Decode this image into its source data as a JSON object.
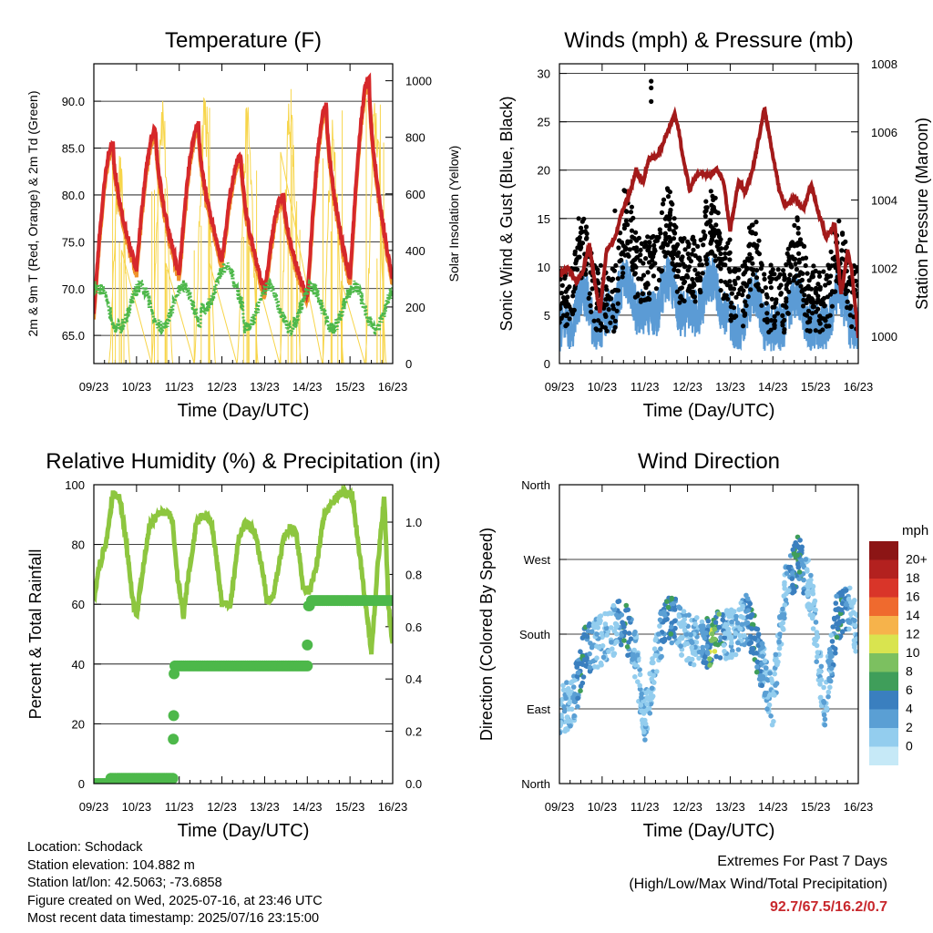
{
  "footer": {
    "location": "Location: Schodack",
    "elevation": "Station elevation: 104.882 m",
    "latlon": "Station lat/lon: 42.5063; -73.6858",
    "created": "Figure created on Wed, 2025-07-16, at 23:46 UTC",
    "recent": "Most recent data timestamp: 2025/07/16 23:15:00"
  },
  "extremes": {
    "title": "Extremes For Past 7 Days",
    "subtitle": "(High/Low/Max Wind/Total Precipitation)",
    "values": "92.7/67.5/16.2/0.7",
    "color": "#c8282d"
  },
  "chart_data": [
    {
      "type": "line",
      "title": "Temperature (F)",
      "xlabel": "Time (Day/UTC)",
      "ylabel": "2m & 9m T (Red, Orange) & 2m Td (Green)",
      "y2label": "Solar Insolation (Yellow)",
      "xticks": [
        "09/23",
        "10/23",
        "11/23",
        "12/23",
        "13/23",
        "14/23",
        "15/23",
        "16/23"
      ],
      "xlim": [
        0,
        7
      ],
      "ylim": [
        62,
        94
      ],
      "yticks": [
        "65.0",
        "70.0",
        "75.0",
        "80.0",
        "85.0",
        "90.0"
      ],
      "y2lim": [
        0,
        1060
      ],
      "y2ticks": [
        "0",
        "200",
        "400",
        "600",
        "800",
        "1000"
      ],
      "grid": true,
      "colors": {
        "t2m": "#d6282b",
        "t9m": "#f0922c",
        "td": "#4db84a",
        "solar": "#f7d54a"
      },
      "daily_high": [
        85.5,
        87.0,
        87.5,
        84.0,
        80.0,
        89.5,
        92.5
      ],
      "daily_low": [
        67.5,
        72.0,
        71.5,
        73.0,
        69.5,
        69.0,
        71.0
      ],
      "dewpoint_range": [
        64.0,
        73.5
      ],
      "solar_daily_peak": [
        760,
        1000,
        1010,
        940,
        1000,
        900,
        970
      ]
    },
    {
      "type": "scatter",
      "title": "Winds (mph) & Pressure (mb)",
      "xlabel": "Time (Day/UTC)",
      "ylabel": "Sonic Wind & Gust (Blue, Black)",
      "y2label": "Station Pressure (Maroon)",
      "xticks": [
        "09/23",
        "10/23",
        "11/23",
        "12/23",
        "13/23",
        "14/23",
        "15/23",
        "16/23"
      ],
      "xlim": [
        0,
        7
      ],
      "ylim": [
        0,
        31
      ],
      "yticks": [
        "0",
        "5",
        "10",
        "15",
        "20",
        "25",
        "30"
      ],
      "y2lim": [
        999.2,
        1008
      ],
      "y2ticks": [
        "1000",
        "1002",
        "1004",
        "1006",
        "1008"
      ],
      "grid": true,
      "colors": {
        "wind": "#5b9bd5",
        "gust": "#000000",
        "pressure": "#a31a1a"
      },
      "pressure_series": {
        "x": [
          0,
          0.2,
          0.4,
          0.55,
          0.7,
          0.85,
          0.95,
          1.1,
          1.3,
          1.5,
          1.65,
          1.8,
          1.95,
          2.1,
          2.3,
          2.5,
          2.7,
          2.8,
          2.9,
          3.05,
          3.25,
          3.5,
          3.7,
          3.85,
          4.0,
          4.2,
          4.35,
          4.55,
          4.8,
          5.0,
          5.15,
          5.3,
          5.5,
          5.7,
          5.9,
          6.05,
          6.25,
          6.45,
          6.6,
          6.75,
          6.85,
          7.0
        ],
        "y": [
          1001.8,
          1002.0,
          1001.6,
          1001.9,
          1002.7,
          1001.4,
          1000.7,
          1002.5,
          1002.9,
          1003.8,
          1004.2,
          1004.9,
          1004.5,
          1005.2,
          1005.3,
          1005.9,
          1006.5,
          1006.0,
          1005.2,
          1004.3,
          1004.8,
          1004.7,
          1004.9,
          1004.5,
          1003.1,
          1004.6,
          1004.2,
          1005.0,
          1006.7,
          1005.3,
          1004.3,
          1003.8,
          1004.1,
          1003.7,
          1004.4,
          1003.7,
          1002.9,
          1003.3,
          1001.2,
          1002.5,
          1001.9,
          1000.0
        ]
      },
      "wind_range": [
        0.5,
        15.0
      ],
      "gust_max": 29.2
    },
    {
      "type": "line",
      "title": "Relative Humidity (%) & Precipitation (in)",
      "xlabel": "Time (Day/UTC)",
      "ylabel": "Percent & Total Rainfall",
      "xticks": [
        "09/23",
        "10/23",
        "11/23",
        "12/23",
        "13/23",
        "14/23",
        "15/23",
        "16/23"
      ],
      "xlim": [
        0,
        7
      ],
      "ylim": [
        0,
        100
      ],
      "yticks": [
        "0",
        "20",
        "40",
        "60",
        "80",
        "100"
      ],
      "y2lim": [
        0,
        1.143
      ],
      "y2ticks": [
        "0.0",
        "0.2",
        "0.4",
        "0.6",
        "0.8",
        "1.0"
      ],
      "grid": true,
      "colors": {
        "rh": "#8dc63f",
        "rain": "#4db84a"
      },
      "rh_series": {
        "x": [
          0,
          0.12,
          0.3,
          0.45,
          0.6,
          0.75,
          0.9,
          1.0,
          1.15,
          1.3,
          1.5,
          1.75,
          1.85,
          1.95,
          2.1,
          2.2,
          2.4,
          2.55,
          2.75,
          2.9,
          3.0,
          3.2,
          3.4,
          3.55,
          3.75,
          3.95,
          4.05,
          4.2,
          4.45,
          4.6,
          4.75,
          4.9,
          5.05,
          5.2,
          5.4,
          5.55,
          5.75,
          5.9,
          6.05,
          6.3,
          6.5,
          6.65,
          6.8,
          6.9,
          7.0
        ],
        "y": [
          62,
          72,
          82,
          97,
          96,
          82,
          62,
          56,
          72,
          86,
          90,
          91,
          87,
          70,
          56,
          68,
          87,
          90,
          88,
          72,
          60,
          60,
          83,
          87,
          85,
          72,
          61,
          63,
          82,
          86,
          83,
          66,
          64,
          72,
          90,
          93,
          97,
          97,
          97,
          68,
          44,
          73,
          96,
          60,
          46
        ]
      },
      "rain_cumulative": {
        "x": [
          0,
          0.35,
          0.4,
          1.85,
          1.86,
          1.87,
          1.88,
          1.9,
          1.95,
          5.0,
          5.02,
          5.05,
          5.1,
          7.0
        ],
        "y": [
          0.0,
          0.0,
          0.02,
          0.02,
          0.17,
          0.26,
          0.42,
          0.45,
          0.45,
          0.45,
          0.53,
          0.68,
          0.7,
          0.7
        ]
      }
    },
    {
      "type": "scatter",
      "title": "Wind Direction",
      "xlabel": "Time (Day/UTC)",
      "ylabel": "Direction (Colored By Speed)",
      "xticks": [
        "09/23",
        "10/23",
        "11/23",
        "12/23",
        "13/23",
        "14/23",
        "15/23",
        "16/23"
      ],
      "xlim": [
        0,
        7
      ],
      "ylim": [
        0,
        360
      ],
      "yticks": [
        "North",
        "East",
        "South",
        "West",
        "North"
      ],
      "grid": true,
      "legend": {
        "unit": "mph",
        "labels": [
          "0",
          "2",
          "4",
          "6",
          "8",
          "10",
          "12",
          "14",
          "16",
          "18",
          "20+"
        ],
        "colors": [
          "#c6e9f7",
          "#93cdee",
          "#5a9fd4",
          "#3a7fbf",
          "#3f9e5a",
          "#7cc060",
          "#d9e44f",
          "#f6b34b",
          "#ef6a2e",
          "#d93529",
          "#b3211f",
          "#8c1515"
        ],
        "placement": "right"
      },
      "direction_series": {
        "x": [
          0,
          0.3,
          0.6,
          0.9,
          1.2,
          1.5,
          1.8,
          2.0,
          2.3,
          2.6,
          2.9,
          3.2,
          3.5,
          3.8,
          4.1,
          4.4,
          4.7,
          5.0,
          5.3,
          5.6,
          5.9,
          6.2,
          6.5,
          6.8,
          7.0
        ],
        "y": [
          90,
          95,
          160,
          170,
          180,
          200,
          150,
          70,
          170,
          200,
          180,
          170,
          170,
          180,
          180,
          200,
          150,
          95,
          240,
          270,
          230,
          90,
          200,
          210,
          180
        ]
      }
    }
  ]
}
